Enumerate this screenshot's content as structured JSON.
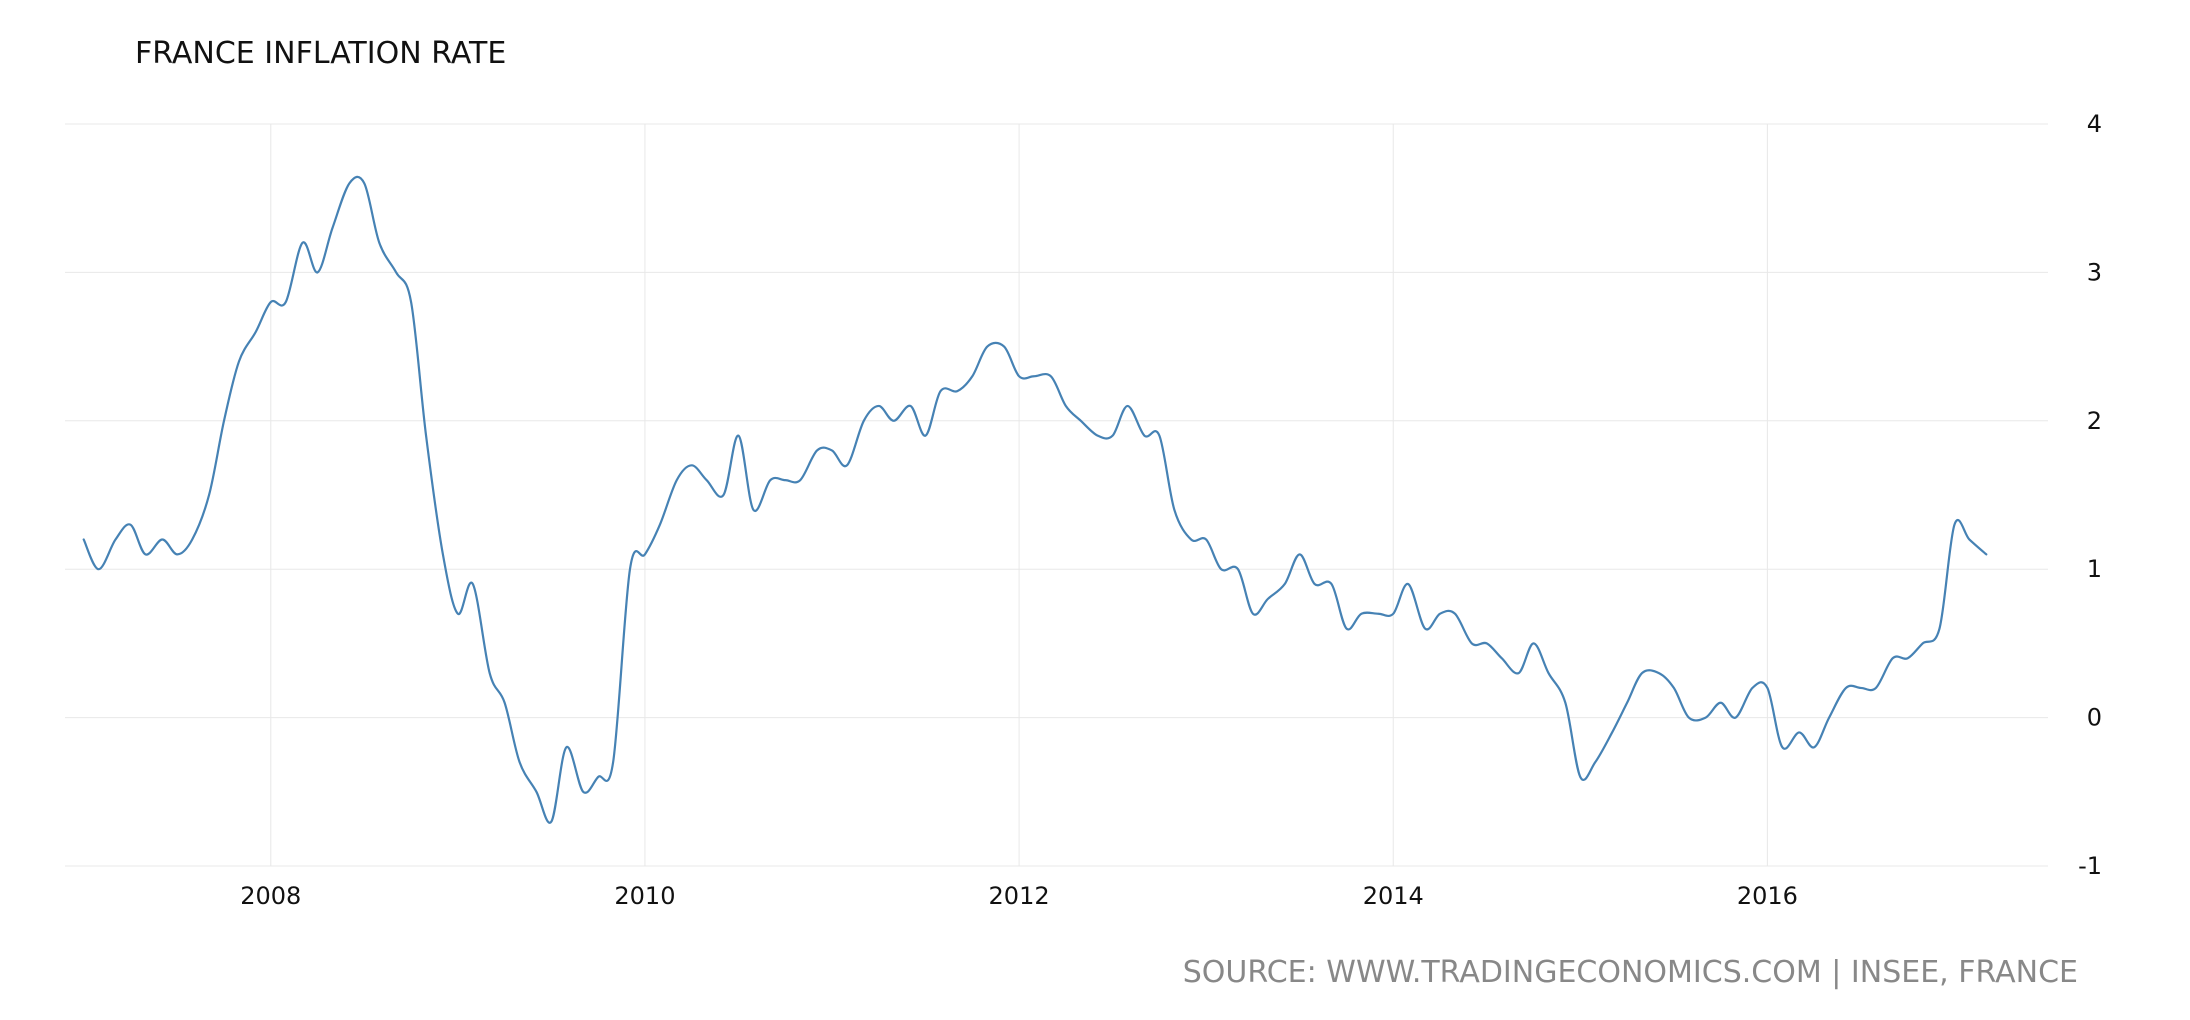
{
  "chart_data": {
    "type": "line",
    "title": "FRANCE INFLATION RATE",
    "source": "SOURCE: WWW.TRADINGECONOMICS.COM | INSEE, FRANCE",
    "xlabel": "",
    "ylabel": "",
    "x_ticks": [
      {
        "value": 2008,
        "label": "2008"
      },
      {
        "value": 2010,
        "label": "2010"
      },
      {
        "value": 2012,
        "label": "2012"
      },
      {
        "value": 2014,
        "label": "2014"
      },
      {
        "value": 2016,
        "label": "2016"
      }
    ],
    "y_ticks": [
      {
        "value": 4,
        "label": "4"
      },
      {
        "value": 3,
        "label": "3"
      },
      {
        "value": 2,
        "label": "2"
      },
      {
        "value": 1,
        "label": "1"
      },
      {
        "value": 0,
        "label": "0"
      },
      {
        "value": -1,
        "label": "-1"
      }
    ],
    "xlim": [
      2006.9,
      2017.5
    ],
    "ylim": [
      -1,
      4
    ],
    "grid": true,
    "y_axis_side": "right",
    "line_color": "#4682b4",
    "series": [
      {
        "points": [
          [
            2007.0,
            1.2
          ],
          [
            2007.08,
            1.0
          ],
          [
            2007.17,
            1.2
          ],
          [
            2007.25,
            1.3
          ],
          [
            2007.33,
            1.1
          ],
          [
            2007.42,
            1.2
          ],
          [
            2007.5,
            1.1
          ],
          [
            2007.58,
            1.2
          ],
          [
            2007.67,
            1.5
          ],
          [
            2007.75,
            2.0
          ],
          [
            2007.83,
            2.4
          ],
          [
            2007.92,
            2.6
          ],
          [
            2008.0,
            2.8
          ],
          [
            2008.08,
            2.8
          ],
          [
            2008.17,
            3.2
          ],
          [
            2008.25,
            3.0
          ],
          [
            2008.33,
            3.3
          ],
          [
            2008.42,
            3.6
          ],
          [
            2008.5,
            3.6
          ],
          [
            2008.58,
            3.2
          ],
          [
            2008.67,
            3.0
          ],
          [
            2008.75,
            2.8
          ],
          [
            2008.83,
            1.9
          ],
          [
            2008.92,
            1.1
          ],
          [
            2009.0,
            0.7
          ],
          [
            2009.08,
            0.9
          ],
          [
            2009.17,
            0.3
          ],
          [
            2009.25,
            0.1
          ],
          [
            2009.33,
            -0.3
          ],
          [
            2009.42,
            -0.5
          ],
          [
            2009.5,
            -0.7
          ],
          [
            2009.58,
            -0.2
          ],
          [
            2009.67,
            -0.5
          ],
          [
            2009.75,
            -0.4
          ],
          [
            2009.83,
            -0.3
          ],
          [
            2009.92,
            1.0
          ],
          [
            2010.0,
            1.1
          ],
          [
            2010.08,
            1.3
          ],
          [
            2010.17,
            1.6
          ],
          [
            2010.25,
            1.7
          ],
          [
            2010.33,
            1.6
          ],
          [
            2010.42,
            1.5
          ],
          [
            2010.5,
            1.9
          ],
          [
            2010.58,
            1.4
          ],
          [
            2010.67,
            1.6
          ],
          [
            2010.75,
            1.6
          ],
          [
            2010.83,
            1.6
          ],
          [
            2010.92,
            1.8
          ],
          [
            2011.0,
            1.8
          ],
          [
            2011.08,
            1.7
          ],
          [
            2011.17,
            2.0
          ],
          [
            2011.25,
            2.1
          ],
          [
            2011.33,
            2.0
          ],
          [
            2011.42,
            2.1
          ],
          [
            2011.5,
            1.9
          ],
          [
            2011.58,
            2.2
          ],
          [
            2011.67,
            2.2
          ],
          [
            2011.75,
            2.3
          ],
          [
            2011.83,
            2.5
          ],
          [
            2011.92,
            2.5
          ],
          [
            2012.0,
            2.3
          ],
          [
            2012.08,
            2.3
          ],
          [
            2012.17,
            2.3
          ],
          [
            2012.25,
            2.1
          ],
          [
            2012.33,
            2.0
          ],
          [
            2012.42,
            1.9
          ],
          [
            2012.5,
            1.9
          ],
          [
            2012.58,
            2.1
          ],
          [
            2012.67,
            1.9
          ],
          [
            2012.75,
            1.9
          ],
          [
            2012.83,
            1.4
          ],
          [
            2012.92,
            1.2
          ],
          [
            2013.0,
            1.2
          ],
          [
            2013.08,
            1.0
          ],
          [
            2013.17,
            1.0
          ],
          [
            2013.25,
            0.7
          ],
          [
            2013.33,
            0.8
          ],
          [
            2013.42,
            0.9
          ],
          [
            2013.5,
            1.1
          ],
          [
            2013.58,
            0.9
          ],
          [
            2013.67,
            0.9
          ],
          [
            2013.75,
            0.6
          ],
          [
            2013.83,
            0.7
          ],
          [
            2013.92,
            0.7
          ],
          [
            2014.0,
            0.7
          ],
          [
            2014.08,
            0.9
          ],
          [
            2014.17,
            0.6
          ],
          [
            2014.25,
            0.7
          ],
          [
            2014.33,
            0.7
          ],
          [
            2014.42,
            0.5
          ],
          [
            2014.5,
            0.5
          ],
          [
            2014.58,
            0.4
          ],
          [
            2014.67,
            0.3
          ],
          [
            2014.75,
            0.5
          ],
          [
            2014.83,
            0.3
          ],
          [
            2014.92,
            0.1
          ],
          [
            2015.0,
            -0.4
          ],
          [
            2015.08,
            -0.3
          ],
          [
            2015.17,
            -0.1
          ],
          [
            2015.25,
            0.1
          ],
          [
            2015.33,
            0.3
          ],
          [
            2015.42,
            0.3
          ],
          [
            2015.5,
            0.2
          ],
          [
            2015.58,
            0.0
          ],
          [
            2015.67,
            0.0
          ],
          [
            2015.75,
            0.1
          ],
          [
            2015.83,
            0.0
          ],
          [
            2015.92,
            0.2
          ],
          [
            2016.0,
            0.2
          ],
          [
            2016.08,
            -0.2
          ],
          [
            2016.17,
            -0.1
          ],
          [
            2016.25,
            -0.2
          ],
          [
            2016.33,
            0.0
          ],
          [
            2016.42,
            0.2
          ],
          [
            2016.5,
            0.2
          ],
          [
            2016.58,
            0.2
          ],
          [
            2016.67,
            0.4
          ],
          [
            2016.75,
            0.4
          ],
          [
            2016.83,
            0.5
          ],
          [
            2016.92,
            0.6
          ],
          [
            2017.0,
            1.3
          ],
          [
            2017.08,
            1.2
          ],
          [
            2017.17,
            1.1
          ]
        ]
      }
    ]
  }
}
